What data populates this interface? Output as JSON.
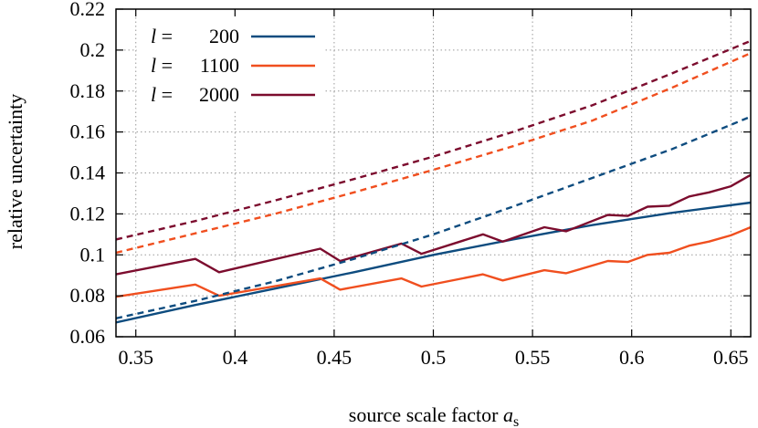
{
  "chart_data": {
    "type": "line",
    "xlabel": "source scale factor",
    "xlabel_symbol": "a",
    "xlabel_subscript": "s",
    "ylabel": "relative uncertainty",
    "xlim": [
      0.34,
      0.66
    ],
    "ylim": [
      0.06,
      0.22
    ],
    "xticks": [
      "0.35",
      "0.4",
      "0.45",
      "0.5",
      "0.55",
      "0.6",
      "0.65"
    ],
    "xtick_values": [
      0.35,
      0.4,
      0.45,
      0.5,
      0.55,
      0.6,
      0.65
    ],
    "yticks": [
      "0.06",
      "0.08",
      "0.1",
      "0.12",
      "0.14",
      "0.16",
      "0.18",
      "0.2",
      "0.22"
    ],
    "ytick_values": [
      0.06,
      0.08,
      0.1,
      0.12,
      0.14,
      0.16,
      0.18,
      0.2,
      0.22
    ],
    "grid": true,
    "legend_position": "top-left",
    "series": [
      {
        "name": "l = 200",
        "legend_symbol": "l",
        "legend_value": "200",
        "color": "#0e4c7f",
        "style": "solid",
        "x": [
          0.34,
          0.38,
          0.42,
          0.46,
          0.5,
          0.54,
          0.58,
          0.62,
          0.66
        ],
        "y": [
          0.067,
          0.0755,
          0.0835,
          0.0915,
          0.1,
          0.1075,
          0.1145,
          0.1205,
          0.1255
        ]
      },
      {
        "name": "l = 1100",
        "legend_symbol": "l",
        "legend_value": "1100",
        "color": "#f04f1f",
        "style": "solid",
        "x": [
          0.34,
          0.38,
          0.392,
          0.443,
          0.453,
          0.484,
          0.494,
          0.525,
          0.535,
          0.556,
          0.567,
          0.588,
          0.598,
          0.608,
          0.619,
          0.629,
          0.639,
          0.65,
          0.66
        ],
        "y": [
          0.0795,
          0.0855,
          0.08,
          0.0885,
          0.083,
          0.0885,
          0.0845,
          0.0905,
          0.0875,
          0.0925,
          0.091,
          0.097,
          0.0965,
          0.1,
          0.101,
          0.1045,
          0.1065,
          0.1095,
          0.1135
        ]
      },
      {
        "name": "l = 2000",
        "legend_symbol": "l",
        "legend_value": "2000",
        "color": "#7c0c2e",
        "style": "solid",
        "x": [
          0.34,
          0.38,
          0.392,
          0.443,
          0.453,
          0.484,
          0.494,
          0.525,
          0.535,
          0.556,
          0.567,
          0.588,
          0.598,
          0.608,
          0.619,
          0.629,
          0.639,
          0.65,
          0.66
        ],
        "y": [
          0.0905,
          0.098,
          0.0915,
          0.103,
          0.097,
          0.1055,
          0.1005,
          0.11,
          0.1065,
          0.1135,
          0.1115,
          0.1195,
          0.119,
          0.1235,
          0.124,
          0.1285,
          0.1305,
          0.1335,
          0.139
        ]
      },
      {
        "name": "",
        "color": "#0e4c7f",
        "style": "dashed",
        "x": [
          0.34,
          0.38,
          0.42,
          0.46,
          0.5,
          0.54,
          0.58,
          0.62,
          0.66
        ],
        "y": [
          0.069,
          0.0775,
          0.087,
          0.098,
          0.11,
          0.1235,
          0.1375,
          0.1515,
          0.1675
        ]
      },
      {
        "name": "",
        "color": "#f04f1f",
        "style": "dashed",
        "x": [
          0.34,
          0.38,
          0.42,
          0.46,
          0.5,
          0.54,
          0.58,
          0.62,
          0.66
        ],
        "y": [
          0.101,
          0.1105,
          0.12,
          0.1305,
          0.1415,
          0.153,
          0.1655,
          0.1815,
          0.1985
        ]
      },
      {
        "name": "",
        "color": "#7c0c2e",
        "style": "dashed",
        "x": [
          0.34,
          0.38,
          0.42,
          0.46,
          0.5,
          0.54,
          0.58,
          0.62,
          0.66
        ],
        "y": [
          0.1075,
          0.1165,
          0.1265,
          0.137,
          0.148,
          0.16,
          0.173,
          0.1885,
          0.2045
        ]
      }
    ]
  }
}
